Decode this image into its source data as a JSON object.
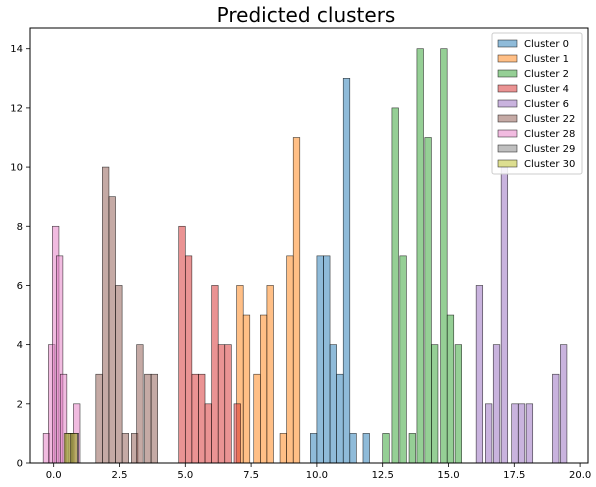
{
  "chart_data": {
    "type": "bar",
    "title": "Predicted clusters",
    "xlabel": "",
    "ylabel": "",
    "xlim": [
      -0.9,
      20.3
    ],
    "ylim": [
      0,
      14.7
    ],
    "xticks": [
      0.0,
      2.5,
      5.0,
      7.5,
      10.0,
      12.5,
      15.0,
      17.5,
      20.0
    ],
    "xtick_labels": [
      "0.0",
      "2.5",
      "5.0",
      "7.5",
      "10.0",
      "12.5",
      "15.0",
      "17.5",
      "20.0"
    ],
    "yticks": [
      0,
      2,
      4,
      6,
      8,
      10,
      12,
      14
    ],
    "ytick_labels": [
      "0",
      "2",
      "4",
      "6",
      "8",
      "10",
      "12",
      "14"
    ],
    "grid": false,
    "legend_position": "top-right",
    "bin_width": 0.25,
    "series": [
      {
        "name": "Cluster 0",
        "color": "#1f77b4",
        "bins": [
          [
            9.75,
            1
          ],
          [
            10.0,
            7
          ],
          [
            10.25,
            7
          ],
          [
            10.5,
            4
          ],
          [
            10.75,
            3
          ],
          [
            11.0,
            13
          ],
          [
            11.25,
            1
          ],
          [
            11.75,
            1
          ]
        ]
      },
      {
        "name": "Cluster 1",
        "color": "#ff7f0e",
        "bins": [
          [
            6.95,
            6
          ],
          [
            7.2,
            5
          ],
          [
            7.6,
            3
          ],
          [
            7.85,
            5
          ],
          [
            8.1,
            6
          ],
          [
            8.6,
            1
          ],
          [
            8.85,
            7
          ],
          [
            9.1,
            11
          ]
        ]
      },
      {
        "name": "Cluster 2",
        "color": "#2ca02c",
        "bins": [
          [
            12.5,
            1
          ],
          [
            12.85,
            12
          ],
          [
            13.15,
            7
          ],
          [
            13.5,
            1
          ],
          [
            13.8,
            14
          ],
          [
            14.1,
            11
          ],
          [
            14.35,
            4
          ],
          [
            14.7,
            14
          ],
          [
            14.95,
            5
          ],
          [
            15.25,
            4
          ]
        ]
      },
      {
        "name": "Cluster 4",
        "color": "#d62728",
        "bins": [
          [
            4.75,
            8
          ],
          [
            5.0,
            7
          ],
          [
            5.25,
            3
          ],
          [
            5.5,
            3
          ],
          [
            5.75,
            2
          ],
          [
            6.0,
            6
          ],
          [
            6.25,
            4
          ],
          [
            6.5,
            4
          ],
          [
            6.85,
            2
          ]
        ]
      },
      {
        "name": "Cluster 6",
        "color": "#9467bd",
        "bins": [
          [
            16.05,
            6
          ],
          [
            16.4,
            2
          ],
          [
            16.7,
            4
          ],
          [
            17.0,
            10
          ],
          [
            17.4,
            2
          ],
          [
            17.65,
            2
          ],
          [
            17.95,
            2
          ],
          [
            18.95,
            3
          ],
          [
            19.25,
            4
          ]
        ]
      },
      {
        "name": "Cluster 22",
        "color": "#8c564b",
        "bins": [
          [
            1.6,
            3
          ],
          [
            1.85,
            10
          ],
          [
            2.1,
            9
          ],
          [
            2.35,
            6
          ],
          [
            2.6,
            1
          ],
          [
            2.95,
            1
          ],
          [
            3.15,
            4
          ],
          [
            3.45,
            3
          ],
          [
            3.7,
            3
          ]
        ]
      },
      {
        "name": "Cluster 28",
        "color": "#e377c2",
        "bins": [
          [
            -0.4,
            1
          ],
          [
            -0.2,
            4
          ],
          [
            -0.05,
            8
          ],
          [
            0.1,
            7
          ],
          [
            0.25,
            3
          ],
          [
            0.55,
            1
          ],
          [
            0.75,
            2
          ]
        ]
      },
      {
        "name": "Cluster 29",
        "color": "#7f7f7f",
        "bins": [
          [
            0.45,
            1
          ],
          [
            0.7,
            1
          ]
        ]
      },
      {
        "name": "Cluster 30",
        "color": "#bcbd22",
        "bins": [
          [
            0.4,
            1
          ],
          [
            0.65,
            1
          ]
        ]
      }
    ]
  }
}
